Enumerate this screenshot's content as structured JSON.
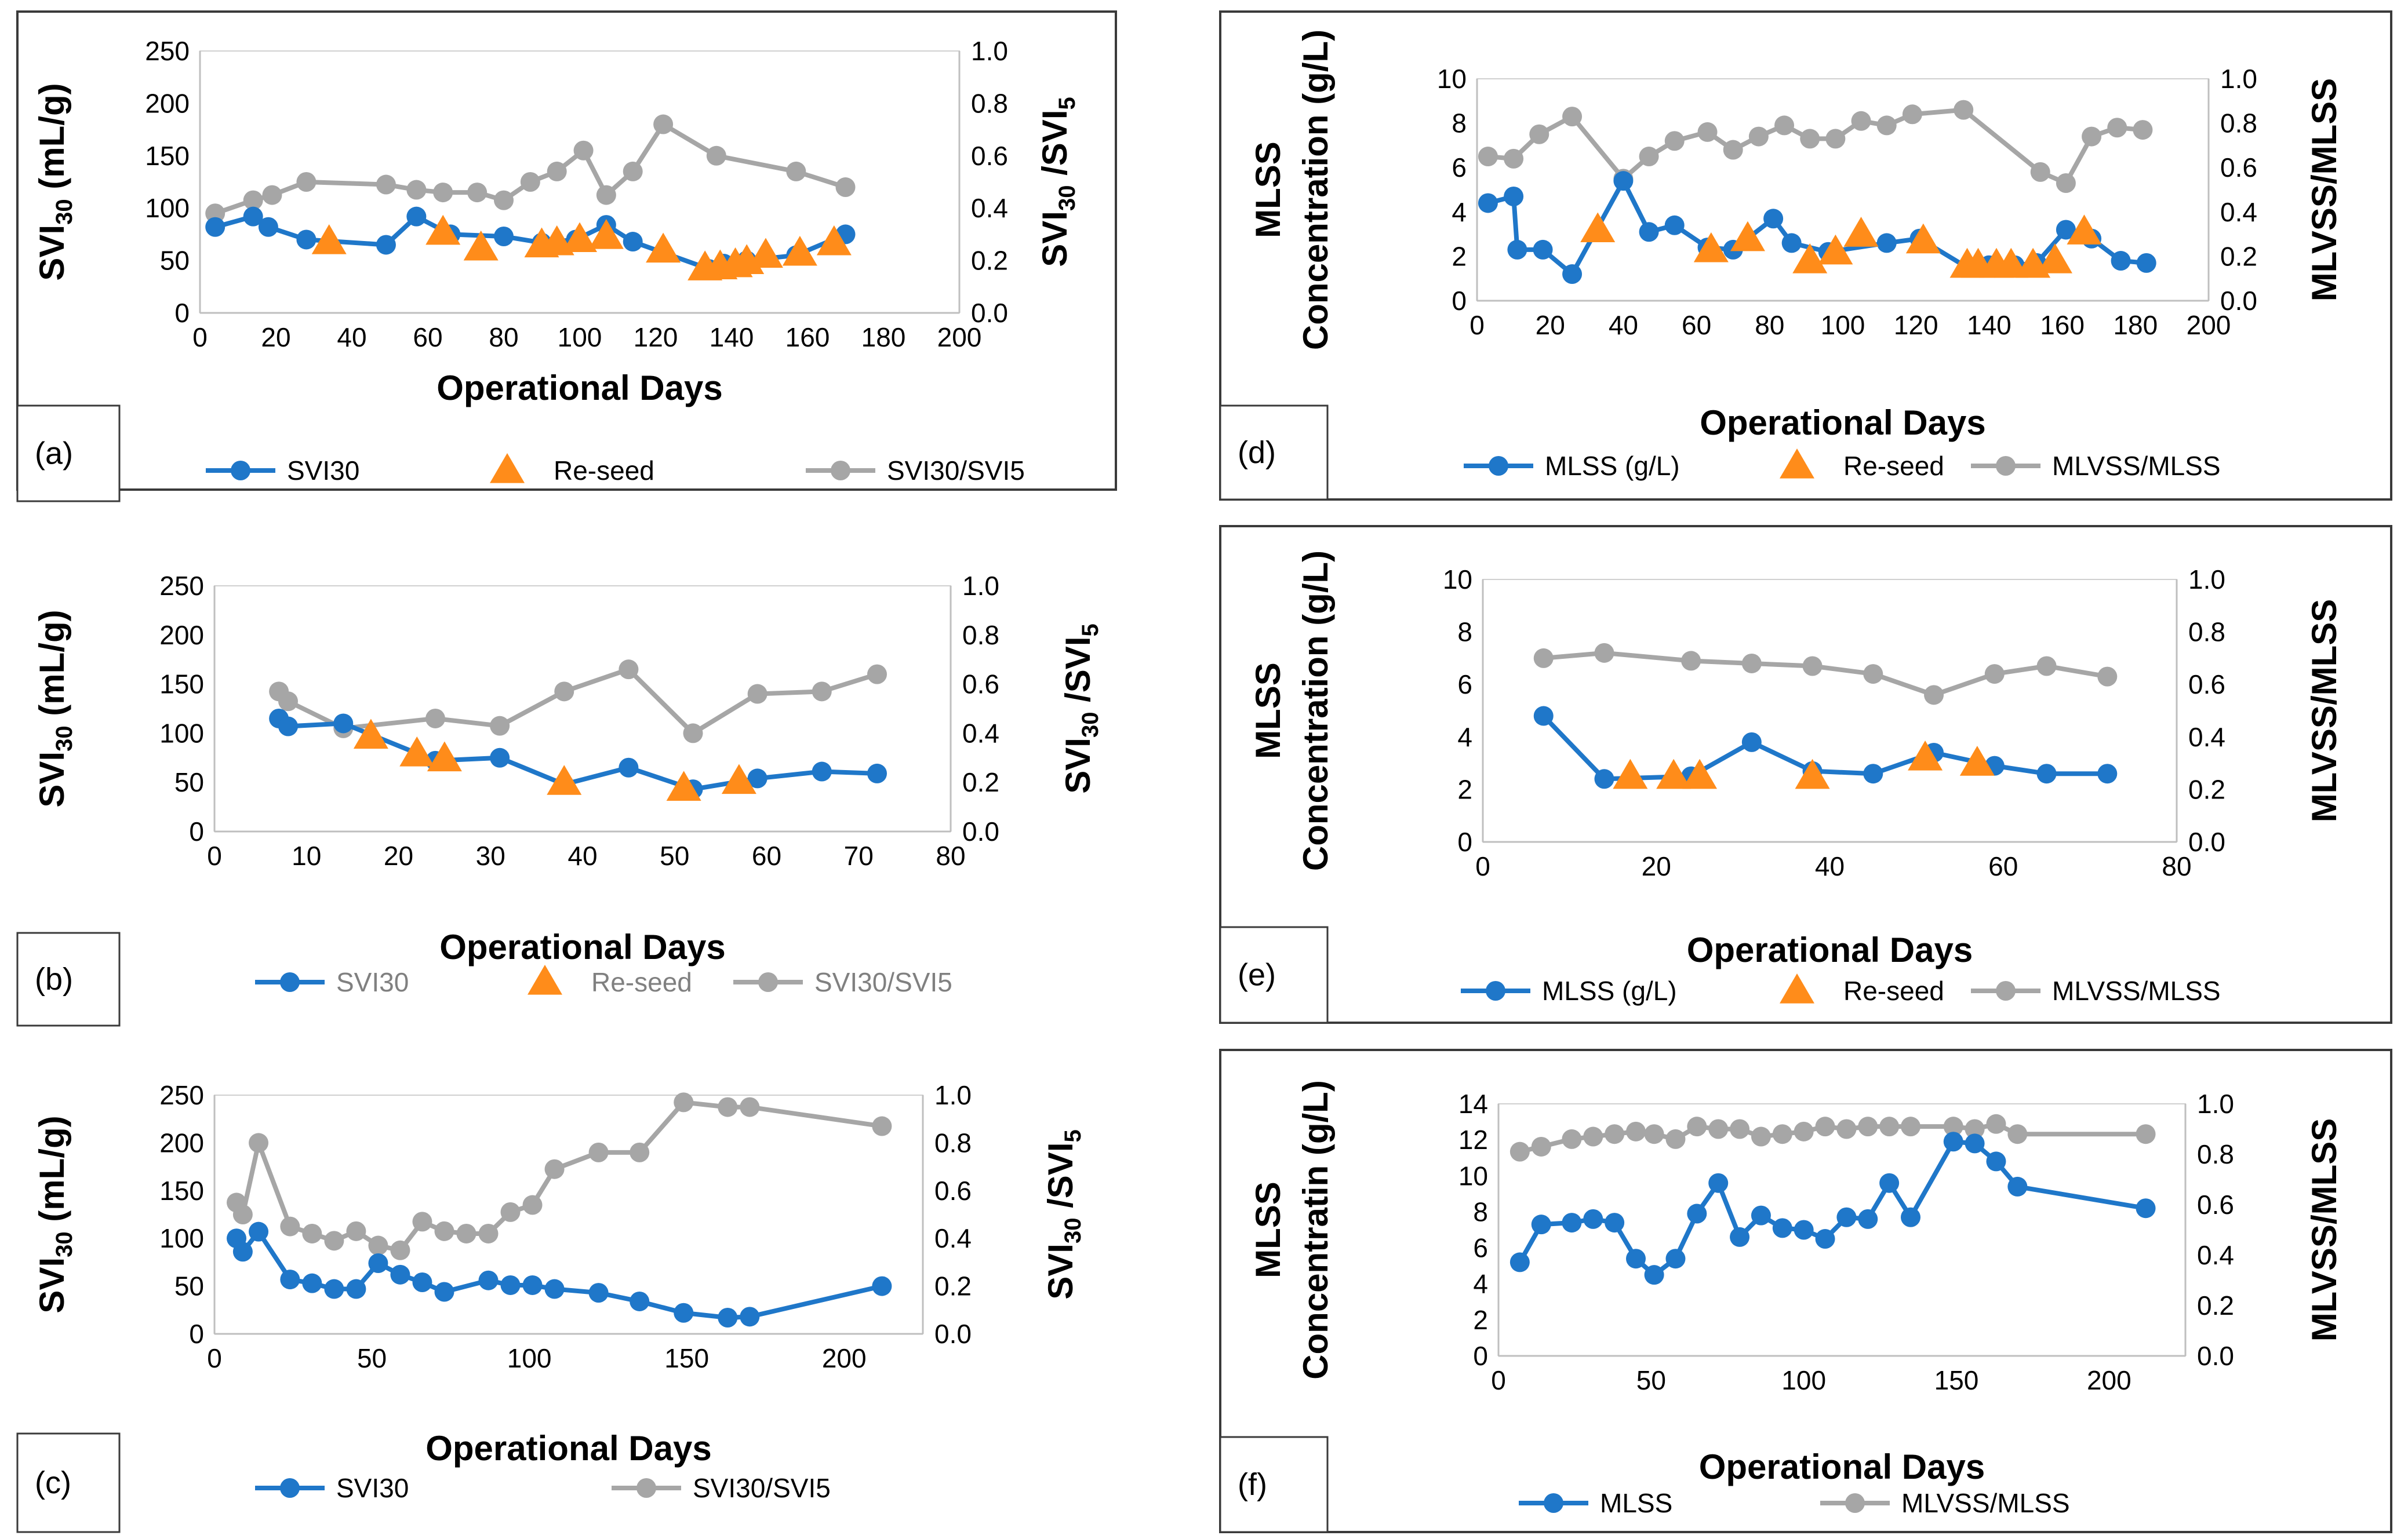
{
  "colors": {
    "blue": "#1f77c9",
    "orange": "#ff8c1a",
    "gray": "#a6a6a6"
  },
  "chart_data": [
    {
      "id": "a",
      "type": "line",
      "panel_label": "(a)",
      "xlabel": "Operational Days",
      "xlim": [
        0,
        200
      ],
      "xticks": [
        0,
        20,
        40,
        60,
        80,
        100,
        120,
        140,
        160,
        180,
        200
      ],
      "ylabel_left": {
        "base": "SVI",
        "sub": "30",
        "tail": " (mL/g)"
      },
      "ylim_left": [
        0,
        250
      ],
      "yticks_left": [
        0,
        50,
        100,
        150,
        200,
        250
      ],
      "ylabel_right": {
        "base": "SVI",
        "sub": "30",
        "tail": " /SVI",
        "sub2": "5"
      },
      "ylim_right": [
        0,
        1
      ],
      "yticks_right": [
        "0.0",
        "0.2",
        "0.4",
        "0.6",
        "0.8",
        "1.0"
      ],
      "legend_muted": false,
      "legend": [
        "SVI30",
        "Re-seed",
        "SVI30/SVI5"
      ],
      "series": [
        {
          "name": "SVI30",
          "axis": "left",
          "style": "blue-line",
          "x": [
            4,
            14,
            18,
            28,
            49,
            57,
            66,
            80,
            90,
            99,
            107,
            114,
            134,
            138,
            144,
            157,
            170
          ],
          "y": [
            82,
            92,
            82,
            70,
            65,
            92,
            75,
            73,
            67,
            70,
            84,
            68,
            42,
            47,
            50,
            55,
            75
          ]
        },
        {
          "name": "Re-seed",
          "axis": "left",
          "style": "orange-triangle",
          "x": [
            34,
            64,
            74,
            90,
            94,
            100,
            107,
            122,
            133,
            137,
            141,
            144,
            149,
            158,
            167
          ],
          "y": [
            68,
            77,
            62,
            65,
            67,
            70,
            73,
            60,
            43,
            44,
            46,
            49,
            55,
            57,
            67
          ]
        },
        {
          "name": "SVI30/SVI5",
          "axis": "right",
          "style": "gray-line",
          "x": [
            4,
            14,
            19,
            28,
            49,
            57,
            64,
            73,
            80,
            87,
            94,
            101,
            107,
            114,
            122,
            136,
            157,
            170
          ],
          "y": [
            0.38,
            0.43,
            0.45,
            0.5,
            0.49,
            0.47,
            0.46,
            0.46,
            0.43,
            0.5,
            0.54,
            0.62,
            0.45,
            0.54,
            0.72,
            0.6,
            0.54,
            0.48
          ]
        }
      ]
    },
    {
      "id": "b",
      "type": "line",
      "panel_label": "(b)",
      "xlabel": "Operational Days",
      "xlim": [
        0,
        80
      ],
      "xticks": [
        0,
        10,
        20,
        30,
        40,
        50,
        60,
        70,
        80
      ],
      "ylabel_left": {
        "base": "SVI",
        "sub": "30",
        "tail": " (mL/g)"
      },
      "ylim_left": [
        0,
        250
      ],
      "yticks_left": [
        0,
        50,
        100,
        150,
        200,
        250
      ],
      "ylabel_right": {
        "base": "SVI",
        "sub": "30",
        "tail": " /SVI",
        "sub2": "5"
      },
      "ylim_right": [
        0,
        1
      ],
      "yticks_right": [
        "0.0",
        "0.2",
        "0.4",
        "0.6",
        "0.8",
        "1.0"
      ],
      "legend_muted": true,
      "legend": [
        "SVI30",
        "Re-seed",
        "SVI30/SVI5"
      ],
      "series": [
        {
          "name": "SVI30",
          "axis": "left",
          "style": "blue-line",
          "x": [
            7,
            8,
            14,
            24,
            31,
            38,
            45,
            52,
            59,
            66,
            72
          ],
          "y": [
            115,
            107,
            110,
            72,
            75,
            48,
            65,
            43,
            54,
            61,
            59
          ]
        },
        {
          "name": "Re-seed",
          "axis": "left",
          "style": "orange-triangle",
          "x": [
            17,
            22,
            25,
            38,
            51,
            57
          ],
          "y": [
            97,
            79,
            74,
            50,
            44,
            51
          ]
        },
        {
          "name": "SVI30/SVI5",
          "axis": "right",
          "style": "gray-line",
          "x": [
            7,
            8,
            14,
            24,
            31,
            38,
            45,
            52,
            59,
            66,
            72
          ],
          "y": [
            0.57,
            0.53,
            0.42,
            0.46,
            0.43,
            0.57,
            0.66,
            0.4,
            0.56,
            0.57,
            0.64
          ]
        }
      ]
    },
    {
      "id": "c",
      "type": "line",
      "panel_label": "(c)",
      "xlabel": "Operational Days",
      "xlim": [
        0,
        225
      ],
      "xticks": [
        0,
        50,
        100,
        150,
        200
      ],
      "ylabel_left": {
        "base": "SVI",
        "sub": "30",
        "tail": " (mL/g)"
      },
      "ylim_left": [
        0,
        250
      ],
      "yticks_left": [
        0,
        50,
        100,
        150,
        200,
        250
      ],
      "ylabel_right": {
        "base": "SVI",
        "sub": "30",
        "tail": " /SVI",
        "sub2": "5"
      },
      "ylim_right": [
        0,
        1
      ],
      "yticks_right": [
        "0.0",
        "0.2",
        "0.4",
        "0.6",
        "0.8",
        "1.0"
      ],
      "legend_muted": false,
      "legend": [
        "SVI30",
        "SVI30/SVI5"
      ],
      "series": [
        {
          "name": "SVI30",
          "axis": "left",
          "style": "blue-line",
          "x": [
            7,
            9,
            14,
            24,
            31,
            38,
            45,
            52,
            59,
            66,
            73,
            87,
            94,
            101,
            108,
            122,
            135,
            149,
            163,
            170,
            212
          ],
          "y": [
            100,
            86,
            107,
            57,
            53,
            47,
            47,
            74,
            62,
            54,
            44,
            56,
            51,
            51,
            47,
            43,
            34,
            22,
            17,
            18,
            50
          ]
        },
        {
          "name": "SVI30/SVI5",
          "axis": "right",
          "style": "gray-line",
          "x": [
            7,
            9,
            14,
            24,
            31,
            38,
            45,
            52,
            59,
            66,
            73,
            80,
            87,
            94,
            101,
            108,
            122,
            135,
            149,
            163,
            170,
            212
          ],
          "y": [
            0.55,
            0.5,
            0.8,
            0.45,
            0.42,
            0.39,
            0.43,
            0.37,
            0.35,
            0.47,
            0.43,
            0.42,
            0.42,
            0.51,
            0.54,
            0.69,
            0.76,
            0.76,
            0.97,
            0.95,
            0.95,
            0.87
          ]
        }
      ]
    },
    {
      "id": "d",
      "type": "line",
      "panel_label": "(d)",
      "xlabel": "Operational Days",
      "xlim": [
        0,
        200
      ],
      "xticks": [
        0,
        20,
        40,
        60,
        80,
        100,
        120,
        140,
        160,
        180,
        200
      ],
      "ylabel_left": {
        "line1": "MLSS",
        "line2": "Concentration (g/L)"
      },
      "ylim_left": [
        0,
        10
      ],
      "yticks_left": [
        0,
        2,
        4,
        6,
        8,
        10
      ],
      "ylabel_right": {
        "text": "MLVSS/MLSS"
      },
      "ylim_right": [
        0,
        1
      ],
      "yticks_right": [
        "0.0",
        "0.2",
        "0.4",
        "0.6",
        "0.8",
        "1.0"
      ],
      "legend_muted": false,
      "legend": [
        "MLSS (g/L)",
        "Re-seed",
        "MLVSS/MLSS"
      ],
      "series": [
        {
          "name": "MLSS (g/L)",
          "axis": "left",
          "style": "blue-line",
          "x": [
            3,
            10,
            11,
            18,
            26,
            40,
            47,
            54,
            63,
            70,
            81,
            86,
            96,
            112,
            121,
            134,
            140,
            147,
            153,
            161,
            168,
            176,
            183
          ],
          "y": [
            4.4,
            4.7,
            2.3,
            2.3,
            1.2,
            5.4,
            3.1,
            3.4,
            2.4,
            2.3,
            3.7,
            2.6,
            2.2,
            2.6,
            2.8,
            1.5,
            1.6,
            1.6,
            1.7,
            3.2,
            2.8,
            1.8,
            1.7
          ]
        },
        {
          "name": "Re-seed",
          "axis": "left",
          "style": "orange-triangle",
          "x": [
            33,
            64,
            74,
            91,
            98,
            105,
            122,
            134,
            137,
            142,
            146,
            152,
            158,
            166
          ],
          "y": [
            3.2,
            2.3,
            2.8,
            1.8,
            2.2,
            3.0,
            2.7,
            1.6,
            1.6,
            1.6,
            1.6,
            1.6,
            1.8,
            3.1
          ]
        },
        {
          "name": "MLVSS/MLSS",
          "axis": "right",
          "style": "gray-line",
          "x": [
            3,
            10,
            17,
            26,
            40,
            47,
            54,
            63,
            70,
            77,
            84,
            91,
            98,
            105,
            112,
            119,
            133,
            154,
            161,
            168,
            175,
            182
          ],
          "y": [
            0.65,
            0.64,
            0.75,
            0.83,
            0.55,
            0.65,
            0.72,
            0.76,
            0.68,
            0.74,
            0.79,
            0.73,
            0.73,
            0.81,
            0.79,
            0.84,
            0.86,
            0.58,
            0.53,
            0.74,
            0.78,
            0.77
          ]
        }
      ]
    },
    {
      "id": "e",
      "type": "line",
      "panel_label": "(e)",
      "xlabel": "Operational Days",
      "xlim": [
        0,
        80
      ],
      "xticks": [
        0,
        20,
        40,
        60,
        80
      ],
      "ylabel_left": {
        "line1": "MLSS",
        "line2": "Concentration (g/L)"
      },
      "ylim_left": [
        0,
        10
      ],
      "yticks_left": [
        0,
        2,
        4,
        6,
        8,
        10
      ],
      "ylabel_right": {
        "text": "MLVSS/MLSS"
      },
      "ylim_right": [
        0,
        1
      ],
      "yticks_right": [
        "0.0",
        "0.2",
        "0.4",
        "0.6",
        "0.8",
        "1.0"
      ],
      "legend_muted": false,
      "legend": [
        "MLSS (g/L)",
        "Re-seed",
        "MLVSS/MLSS"
      ],
      "series": [
        {
          "name": "MLSS (g/L)",
          "axis": "left",
          "style": "blue-line",
          "x": [
            7,
            14,
            24,
            31,
            38,
            45,
            52,
            59,
            65,
            72
          ],
          "y": [
            4.8,
            2.4,
            2.5,
            3.8,
            2.7,
            2.6,
            3.4,
            2.9,
            2.6,
            2.6
          ]
        },
        {
          "name": "Re-seed",
          "axis": "left",
          "style": "orange-triangle",
          "x": [
            17,
            22,
            25,
            38,
            51,
            57
          ],
          "y": [
            2.5,
            2.5,
            2.5,
            2.5,
            3.2,
            3.0
          ]
        },
        {
          "name": "MLVSS/MLSS",
          "axis": "right",
          "style": "gray-line",
          "x": [
            7,
            14,
            24,
            31,
            38,
            45,
            52,
            59,
            65,
            72
          ],
          "y": [
            0.7,
            0.72,
            0.69,
            0.68,
            0.67,
            0.64,
            0.56,
            0.64,
            0.67,
            0.63
          ]
        }
      ]
    },
    {
      "id": "f",
      "type": "line",
      "panel_label": "(f)",
      "xlabel": "Operational Days",
      "xlim": [
        0,
        225
      ],
      "xticks": [
        0,
        50,
        100,
        150,
        200
      ],
      "ylabel_left": {
        "line1": "MLSS",
        "line2": "Concentratin (g/L)"
      },
      "ylim_left": [
        0,
        14
      ],
      "yticks_left": [
        0,
        2,
        4,
        6,
        8,
        10,
        12,
        14
      ],
      "ylabel_right": {
        "text": "MLVSS/MLSS"
      },
      "ylim_right": [
        0,
        1
      ],
      "yticks_right": [
        "0.0",
        "0.2",
        "0.4",
        "0.6",
        "0.8",
        "1.0"
      ],
      "legend_muted": false,
      "legend": [
        "MLSS",
        "MLVSS/MLSS"
      ],
      "series": [
        {
          "name": "MLSS",
          "axis": "left",
          "style": "blue-line",
          "x": [
            7,
            14,
            24,
            31,
            38,
            45,
            51,
            58,
            65,
            72,
            79,
            86,
            93,
            100,
            107,
            114,
            121,
            128,
            135,
            149,
            156,
            163,
            170,
            212
          ],
          "y": [
            5.2,
            7.3,
            7.4,
            7.6,
            7.4,
            5.4,
            4.5,
            5.4,
            7.9,
            9.6,
            6.6,
            7.8,
            7.1,
            7.0,
            6.5,
            7.7,
            7.6,
            9.6,
            7.7,
            11.9,
            11.8,
            10.8,
            9.4,
            8.2
          ]
        },
        {
          "name": "MLVSS/MLSS",
          "axis": "right",
          "style": "gray-line",
          "x": [
            7,
            14,
            24,
            31,
            38,
            45,
            51,
            58,
            65,
            72,
            79,
            86,
            93,
            100,
            107,
            114,
            121,
            128,
            135,
            149,
            156,
            163,
            170,
            212
          ],
          "y": [
            0.81,
            0.83,
            0.86,
            0.87,
            0.88,
            0.89,
            0.88,
            0.86,
            0.91,
            0.9,
            0.9,
            0.87,
            0.88,
            0.89,
            0.91,
            0.9,
            0.91,
            0.91,
            0.91,
            0.91,
            0.9,
            0.92,
            0.88,
            0.88
          ]
        }
      ]
    }
  ]
}
